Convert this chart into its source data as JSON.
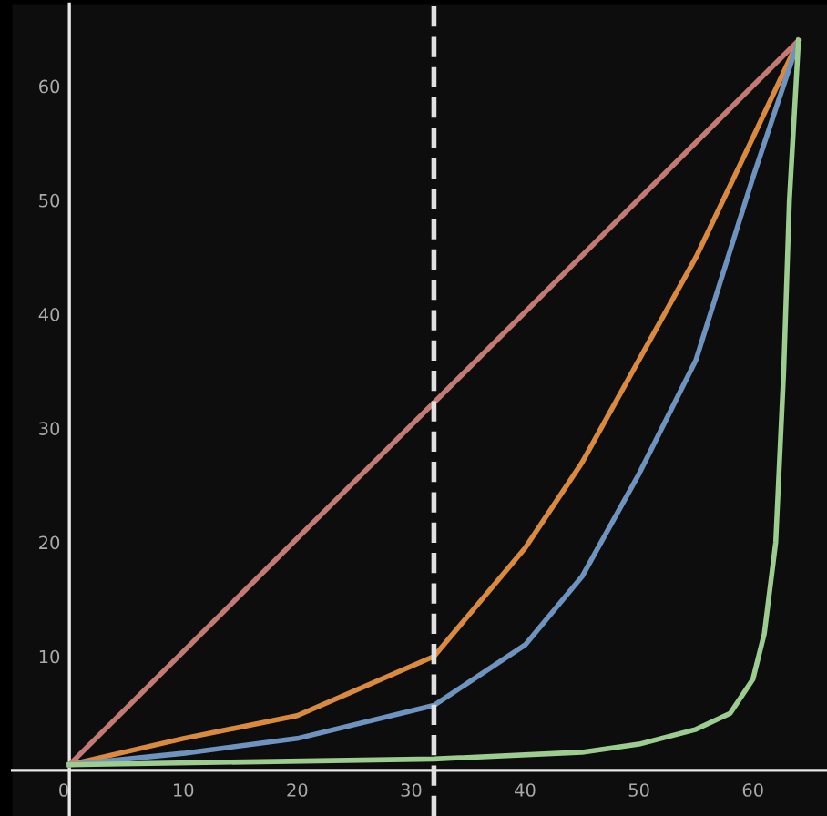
{
  "chart_data": {
    "type": "line",
    "xlim": [
      -5,
      66.5
    ],
    "ylim": [
      -4,
      67.2
    ],
    "xticks": [
      0,
      10,
      20,
      30,
      40,
      50,
      60
    ],
    "yticks": [
      10,
      20,
      30,
      40,
      50,
      60
    ],
    "grid": false,
    "marker": "none",
    "line_style": "solid",
    "series": [
      {
        "color": "#c47a74",
        "x": [
          0,
          64
        ],
        "values": [
          0.5,
          64
        ]
      },
      {
        "color": "#d98a3f",
        "x": [
          0,
          10,
          20,
          32,
          40,
          45,
          50,
          55,
          60,
          64
        ],
        "values": [
          0.5,
          2.8,
          4.8,
          10,
          19.5,
          27,
          36,
          45,
          55.5,
          64
        ]
      },
      {
        "color": "#6f93bf",
        "x": [
          0,
          10,
          20,
          32,
          40,
          45,
          50,
          55,
          60,
          64
        ],
        "values": [
          0.5,
          1.5,
          2.8,
          5.7,
          11,
          17,
          26,
          36,
          52,
          64
        ]
      },
      {
        "color": "#9ccc8f",
        "x": [
          0,
          32,
          45,
          50,
          55,
          58,
          60,
          61,
          62,
          62.7,
          63.2,
          64
        ],
        "values": [
          0.5,
          1,
          1.6,
          2.3,
          3.6,
          5,
          8,
          12,
          20,
          35,
          50,
          64
        ]
      }
    ],
    "ref_lines": [
      {
        "axis": "x",
        "value": 32,
        "color": "#e0e0e0",
        "line_style": "dashed"
      }
    ]
  }
}
